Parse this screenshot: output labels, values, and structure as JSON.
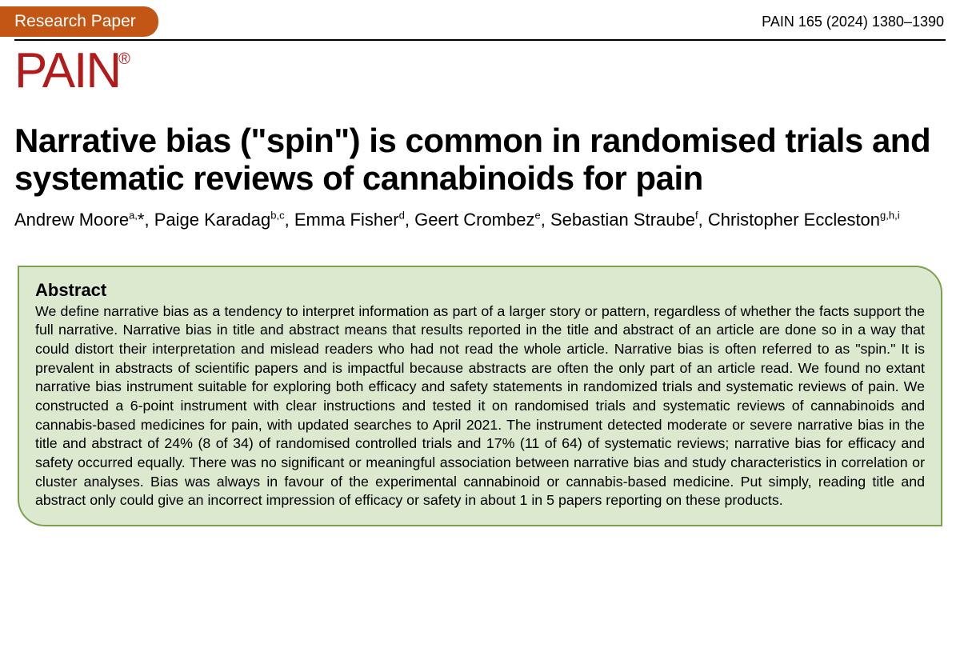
{
  "header": {
    "badge": "Research Paper",
    "citation": "PAIN 165 (2024) 1380–1390"
  },
  "logo": {
    "text": "PAIN",
    "mark": "®",
    "color": "#b31b1b"
  },
  "title": "Narrative bias (\"spin\") is common in randomised trials and systematic reviews of cannabinoids for pain",
  "authors_html": "Andrew Moore<sup>a,</sup>*, Paige Karadag<sup>b,c</sup>, Emma Fisher<sup>d</sup>, Geert Crombez<sup>e</sup>, Sebastian Straube<sup>f</sup>, Christopher Eccleston<sup>g,h,i</sup>",
  "abstract": {
    "heading": "Abstract",
    "text": "We define narrative bias as a tendency to interpret information as part of a larger story or pattern, regardless of whether the facts support the full narrative. Narrative bias in title and abstract means that results reported in the title and abstract of an article are done so in a way that could distort their interpretation and mislead readers who had not read the whole article. Narrative bias is often referred to as \"spin.\" It is prevalent in abstracts of scientific papers and is impactful because abstracts are often the only part of an article read. We found no extant narrative bias instrument suitable for exploring both efficacy and safety statements in randomized trials and systematic reviews of pain. We constructed a 6-point instrument with clear instructions and tested it on randomised trials and systematic reviews of cannabinoids and cannabis-based medicines for pain, with updated searches to April 2021. The instrument detected moderate or severe narrative bias in the title and abstract of 24% (8 of 34) of randomised controlled trials and 17% (11 of 64) of systematic reviews; narrative bias for efficacy and safety occurred equally. There was no significant or meaningful association between narrative bias and study characteristics in correlation or cluster analyses. Bias was always in favour of the experimental cannabinoid or cannabis-based medicine. Put simply, reading title and abstract only could give an incorrect impression of efficacy or safety in about 1 in 5 papers reporting on these products."
  },
  "styles": {
    "badge_bg": "#c35614",
    "abstract_bg": "#dce9cf",
    "abstract_border": "#7aa24f",
    "title_fontsize": 42,
    "authors_fontsize": 22,
    "abstract_fontsize": 17.8
  }
}
